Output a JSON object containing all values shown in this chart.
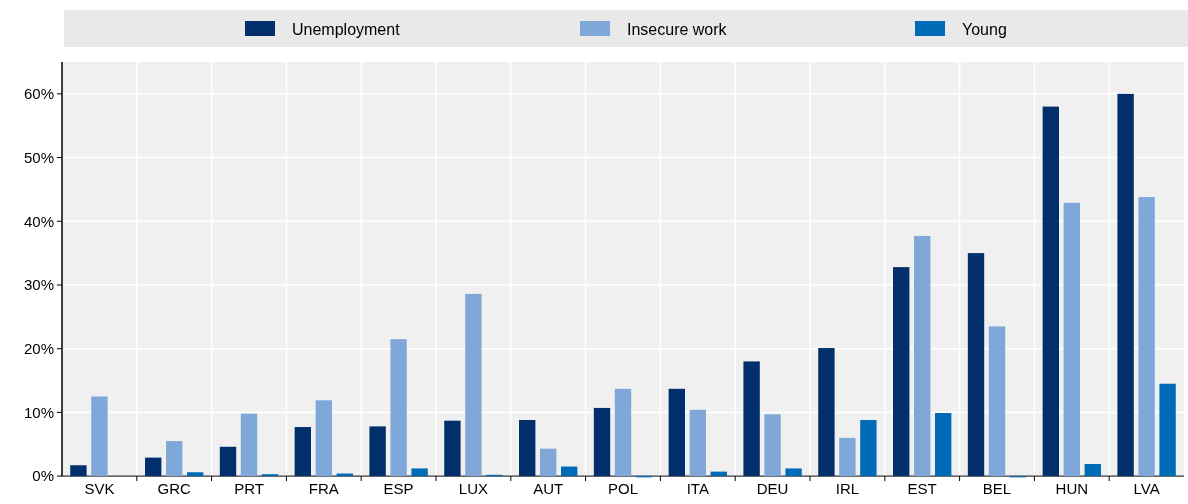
{
  "chart_data": {
    "type": "bar",
    "categories": [
      "SVK",
      "GRC",
      "PRT",
      "FRA",
      "ESP",
      "LUX",
      "AUT",
      "POL",
      "ITA",
      "DEU",
      "IRL",
      "EST",
      "BEL",
      "HUN",
      "LVA"
    ],
    "series": [
      {
        "name": "Unemployment",
        "color": "#002f6c",
        "values": [
          1.7,
          2.9,
          4.6,
          7.7,
          7.8,
          8.7,
          8.8,
          10.7,
          13.7,
          18.0,
          20.1,
          32.8,
          35.0,
          58.0,
          60.0
        ]
      },
      {
        "name": "Insecure work",
        "color": "#7fa8d9",
        "values": [
          12.5,
          5.5,
          9.8,
          11.9,
          21.5,
          28.6,
          4.3,
          13.7,
          10.4,
          9.7,
          6.0,
          37.7,
          23.5,
          42.9,
          43.8
        ]
      },
      {
        "name": "Young",
        "color": "#006bb6",
        "values": [
          0,
          0.6,
          0.3,
          0.4,
          1.2,
          0.2,
          1.5,
          -0.2,
          0.7,
          1.2,
          8.8,
          9.9,
          -0.2,
          1.9,
          14.5
        ]
      }
    ],
    "ylim": [
      -0.3,
      65
    ],
    "yticks": [
      {
        "value": 0,
        "label": "0%"
      },
      {
        "value": 10,
        "label": "10%"
      },
      {
        "value": 20,
        "label": "20%"
      },
      {
        "value": 30,
        "label": "30%"
      },
      {
        "value": 40,
        "label": "40%"
      },
      {
        "value": 50,
        "label": "50%"
      },
      {
        "value": 60,
        "label": "60%"
      }
    ],
    "grid": true,
    "legend": "top"
  }
}
